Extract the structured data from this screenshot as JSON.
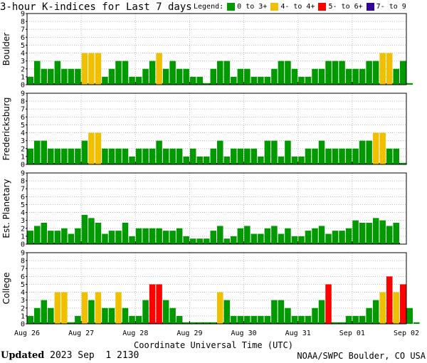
{
  "title": "3-hour K-indices for Last 7 days",
  "legend": {
    "label": "Legend:",
    "items": [
      {
        "label": "0 to 3+",
        "color": "#009900"
      },
      {
        "label": "4- to 4+",
        "color": "#f0c000"
      },
      {
        "label": "5- to 6+",
        "color": "#ff0000"
      },
      {
        "label": "7- to 9",
        "color": "#330099"
      }
    ]
  },
  "footer": {
    "updated_label": "Updated",
    "updated_value": "2023 Sep  1 2130",
    "source": "NOAA/SWPC Boulder, CO USA"
  },
  "chart_data": {
    "type": "bar",
    "xlabel": "Coordinate Universal Time (UTC)",
    "x_tick_labels": [
      "Aug 26",
      "Aug 27",
      "Aug 28",
      "Aug 29",
      "Aug 30",
      "Aug 31",
      "Sep 01",
      "Sep 02"
    ],
    "ylim": [
      0,
      9
    ],
    "y_ticks": [
      0,
      1,
      2,
      3,
      4,
      5,
      6,
      7,
      8,
      9
    ],
    "interval_hours": 3,
    "panels": [
      {
        "name": "Boulder",
        "values": [
          1,
          3,
          2,
          2,
          3,
          2,
          2,
          2,
          4,
          4,
          4,
          1,
          2,
          3,
          3,
          1,
          1,
          2,
          3,
          4,
          2,
          3,
          2,
          2,
          1,
          1,
          0.2,
          2,
          3,
          3,
          1,
          2,
          2,
          1,
          1,
          1,
          2,
          3,
          3,
          2,
          1,
          1,
          2,
          2,
          3,
          3,
          3,
          2,
          2,
          2,
          3,
          3,
          4,
          4,
          2,
          3,
          0.2
        ]
      },
      {
        "name": "Fredericksburg",
        "values": [
          2,
          3,
          3,
          2,
          2,
          2,
          2,
          2,
          3,
          4,
          4,
          2,
          2,
          2,
          2,
          1,
          2,
          2,
          2,
          3,
          2,
          2,
          2,
          1,
          2,
          1,
          1,
          2,
          3,
          1,
          2,
          2,
          2,
          2,
          1,
          3,
          3,
          1,
          3,
          1,
          1,
          2,
          2,
          3,
          2,
          2,
          2,
          2,
          2,
          3,
          3,
          4,
          4,
          2,
          2,
          0.2
        ]
      },
      {
        "name": "Est. Planetary",
        "values": [
          1.7,
          2.3,
          2.7,
          1.7,
          1.7,
          2,
          1.3,
          2,
          3.7,
          3.3,
          2.7,
          1.3,
          1.7,
          1.7,
          2.7,
          1,
          2,
          2,
          2,
          2,
          1.7,
          1.7,
          2,
          1,
          0.7,
          0.7,
          0.7,
          1.7,
          2.3,
          0.7,
          1,
          2,
          2.3,
          1.3,
          1.3,
          2,
          2.3,
          1.3,
          2,
          1,
          1,
          1.7,
          2,
          2.3,
          1.3,
          1.7,
          1.7,
          2,
          3,
          2.7,
          2.7,
          3.3,
          3,
          2.3,
          2.7
        ]
      },
      {
        "name": "College",
        "values": [
          1,
          2,
          3,
          2,
          4,
          4,
          0.2,
          1,
          4,
          3,
          4,
          2,
          2,
          4,
          2,
          1,
          1,
          3,
          5,
          5,
          3,
          2,
          1,
          0.2,
          0.2,
          0.2,
          0.2,
          0.2,
          4,
          3,
          1,
          1,
          1,
          1,
          1,
          1,
          3,
          3,
          2,
          1,
          1,
          1,
          2,
          3,
          5,
          0.2,
          0.2,
          1,
          1,
          1,
          2,
          3,
          4,
          6,
          4,
          5,
          2,
          0.2
        ]
      }
    ]
  }
}
